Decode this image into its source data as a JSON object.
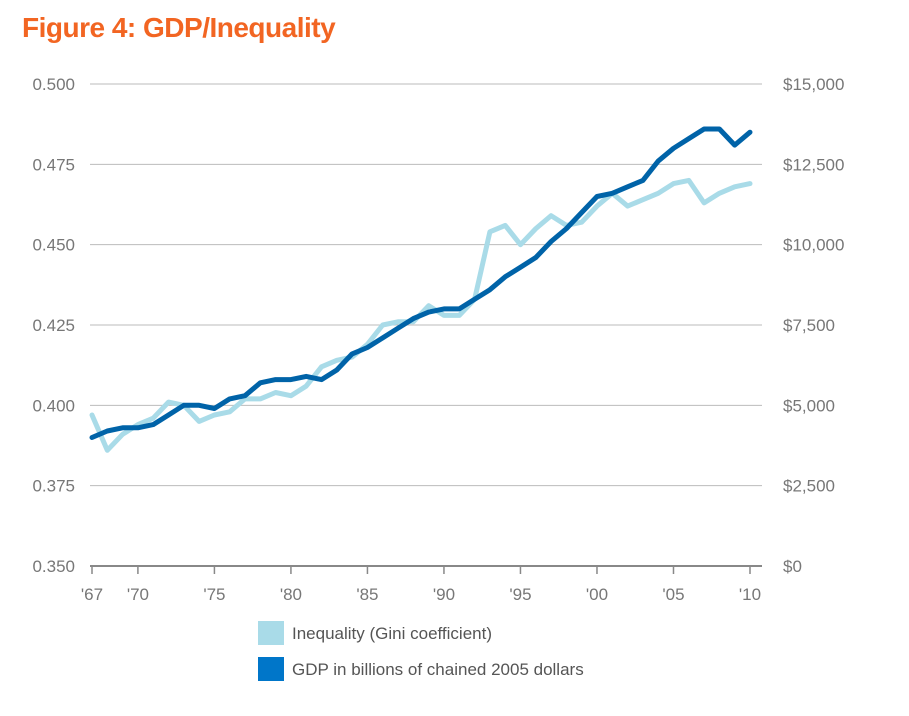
{
  "chart_data": {
    "type": "line",
    "title": "Figure 4: GDP/Inequality",
    "x_tick_labels": [
      "'67",
      "'70",
      "'75",
      "'80",
      "'85",
      "'90",
      "'95",
      "'00",
      "'05",
      "'10"
    ],
    "x_tick_years": [
      1967,
      1970,
      1975,
      1980,
      1985,
      1990,
      1995,
      2000,
      2005,
      2010
    ],
    "xlim": [
      1967,
      2010
    ],
    "left_axis": {
      "ylim": [
        0.35,
        0.5
      ],
      "ticks": [
        "0.500",
        "0.475",
        "0.450",
        "0.425",
        "0.400",
        "0.375",
        "0.350"
      ]
    },
    "right_axis": {
      "ylim": [
        0,
        15000
      ],
      "ticks": [
        "$15,000",
        "$12,500",
        "$10,000",
        "$7,500",
        "$5,000",
        "$2,500",
        "$0"
      ]
    },
    "grid": true,
    "legend_position": "bottom",
    "series": [
      {
        "name": "Inequality (Gini coefficient)",
        "axis": "left",
        "color": "#a9dbe8",
        "x": [
          1967,
          1968,
          1969,
          1970,
          1971,
          1972,
          1973,
          1974,
          1975,
          1976,
          1977,
          1978,
          1979,
          1980,
          1981,
          1982,
          1983,
          1984,
          1985,
          1986,
          1987,
          1988,
          1989,
          1990,
          1991,
          1992,
          1993,
          1994,
          1995,
          1996,
          1997,
          1998,
          1999,
          2000,
          2001,
          2002,
          2003,
          2004,
          2005,
          2006,
          2007,
          2008,
          2009,
          2010
        ],
        "values": [
          0.397,
          0.386,
          0.391,
          0.394,
          0.396,
          0.401,
          0.4,
          0.395,
          0.397,
          0.398,
          0.402,
          0.402,
          0.404,
          0.403,
          0.406,
          0.412,
          0.414,
          0.415,
          0.419,
          0.425,
          0.426,
          0.426,
          0.431,
          0.428,
          0.428,
          0.433,
          0.454,
          0.456,
          0.45,
          0.455,
          0.459,
          0.456,
          0.457,
          0.462,
          0.466,
          0.462,
          0.464,
          0.466,
          0.469,
          0.47,
          0.463,
          0.466,
          0.468,
          0.469
        ]
      },
      {
        "name": "GDP in billions of chained 2005 dollars",
        "axis": "right",
        "color": "#0063a8",
        "x": [
          1967,
          1968,
          1969,
          1970,
          1971,
          1972,
          1973,
          1974,
          1975,
          1976,
          1977,
          1978,
          1979,
          1980,
          1981,
          1982,
          1983,
          1984,
          1985,
          1986,
          1987,
          1988,
          1989,
          1990,
          1991,
          1992,
          1993,
          1994,
          1995,
          1996,
          1997,
          1998,
          1999,
          2000,
          2001,
          2002,
          2003,
          2004,
          2005,
          2006,
          2007,
          2008,
          2009,
          2010
        ],
        "values": [
          4000,
          4200,
          4300,
          4300,
          4400,
          4700,
          5000,
          5000,
          4900,
          5200,
          5300,
          5700,
          5800,
          5800,
          5900,
          5800,
          6100,
          6600,
          6800,
          7100,
          7400,
          7700,
          7900,
          8000,
          8000,
          8300,
          8600,
          9000,
          9300,
          9600,
          10100,
          10500,
          11000,
          11500,
          11600,
          11800,
          12000,
          12600,
          13000,
          13300,
          13600,
          13600,
          13100,
          13500
        ]
      }
    ]
  }
}
